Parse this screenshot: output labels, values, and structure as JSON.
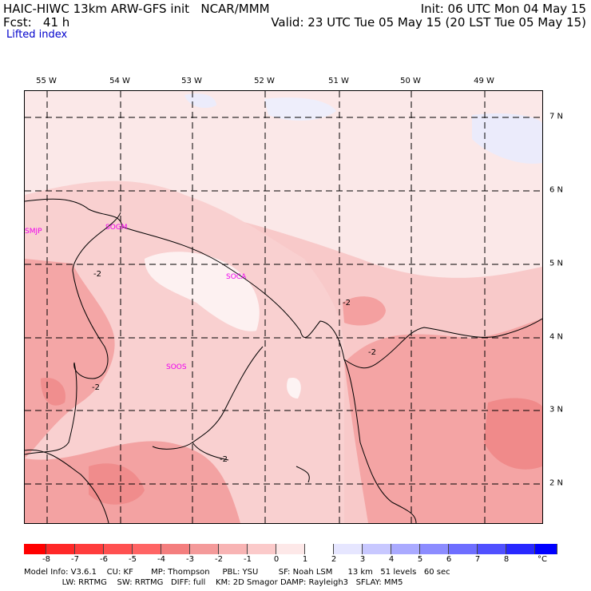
{
  "header": {
    "left_line1": "HAIC-HIWC 13km ARW-GFS init   NCAR/MMM",
    "left_line2": "Fcst:   41 h",
    "right_line1": "Init: 06 UTC Mon 04 May 15",
    "right_line2": "Valid: 23 UTC Tue 05 May 15 (20 LST Tue 05 May 15)",
    "field_name": "Lifted index"
  },
  "map": {
    "lon_labels": [
      "55 W",
      "54 W",
      "53 W",
      "52 W",
      "51 W",
      "50 W",
      "49 W"
    ],
    "lat_labels": [
      "7 N",
      "6 N",
      "5 N",
      "4 N",
      "3 N",
      "2 N"
    ],
    "stations": [
      "SMJP",
      "SOGM",
      "SOCA",
      "SOOS"
    ],
    "contour_labels": [
      "-2",
      "-2",
      "-2",
      "-2",
      "-2"
    ]
  },
  "colorbar": {
    "colors": [
      "#ff0000",
      "#ff2828",
      "#ff3c3c",
      "#ff5050",
      "#ff6464",
      "#f47e7e",
      "#f49a9a",
      "#f8b4b4",
      "#fbcaca",
      "#fde8e8",
      "#ffffff",
      "#e6e6ff",
      "#c8c8ff",
      "#aaaaff",
      "#8c8cff",
      "#6e6eff",
      "#5050ff",
      "#2828ff",
      "#0000ff"
    ],
    "labels": [
      "-8",
      "-7",
      "-6",
      "-5",
      "-4",
      "-3",
      "-2",
      "-1",
      "0",
      "1",
      "2",
      "3",
      "4",
      "5",
      "6",
      "7",
      "8"
    ],
    "unit": "°C"
  },
  "footer": {
    "line1": "Model Info: V3.6.1    CU: KF       MP: Thompson     PBL: YSU        SF: Noah LSM      13 km   51 levels   60 sec",
    "line2": "               LW: RRTMG    SW: RRTMG   DIFF: full    KM: 2D Smagor DAMP: Rayleigh3   SFLAY: MM5"
  }
}
